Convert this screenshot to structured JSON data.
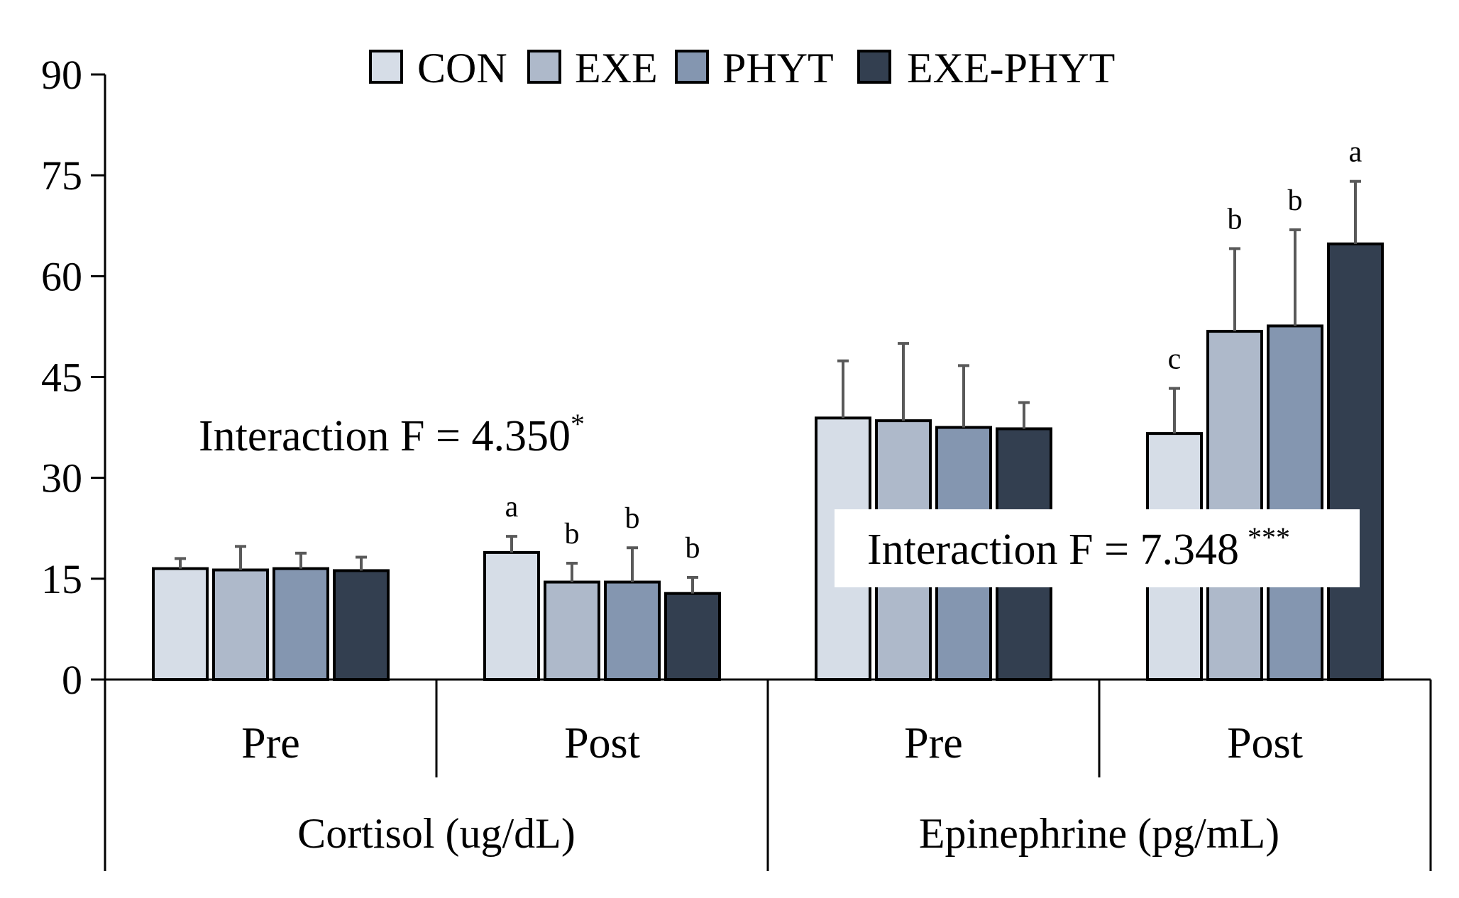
{
  "chart_data": {
    "type": "bar",
    "ylim": [
      0,
      90
    ],
    "yticks": [
      0,
      15,
      30,
      45,
      60,
      75,
      90
    ],
    "legend_position": "top-center",
    "grid": false,
    "series": [
      {
        "name": "CON",
        "color": "#d6dde7"
      },
      {
        "name": "EXE",
        "color": "#aeb9ca"
      },
      {
        "name": "PHYT",
        "color": "#8496b0"
      },
      {
        "name": "EXE-PHYT",
        "color": "#333f50"
      }
    ],
    "groups": [
      {
        "label": "Cortisol (ug/dL)",
        "annotation": {
          "text": "Interaction F = 4.350",
          "sup": "*"
        },
        "subgroups": [
          {
            "label": "Pre",
            "values": [
              16.5,
              16.3,
              16.5,
              16.2
            ],
            "errors": [
              1.5,
              3.5,
              2.3,
              2.0
            ],
            "sig": [
              "",
              "",
              "",
              ""
            ]
          },
          {
            "label": "Post",
            "values": [
              18.9,
              14.5,
              14.5,
              12.8
            ],
            "errors": [
              2.4,
              2.8,
              5.1,
              2.4
            ],
            "sig": [
              "a",
              "b",
              "b",
              "b"
            ]
          }
        ]
      },
      {
        "label": "Epinephrine (pg/mL)",
        "annotation": {
          "text": "Interaction F = 7.348",
          "sup": "***"
        },
        "subgroups": [
          {
            "label": "Pre",
            "values": [
              38.9,
              38.5,
              37.5,
              37.3
            ],
            "errors": [
              8.5,
              11.5,
              9.2,
              3.9
            ],
            "sig": [
              "",
              "",
              "",
              ""
            ]
          },
          {
            "label": "Post",
            "values": [
              36.6,
              51.8,
              52.6,
              64.8
            ],
            "errors": [
              6.7,
              12.3,
              14.3,
              9.3
            ],
            "sig": [
              "c",
              "b",
              "b",
              "a"
            ]
          }
        ]
      }
    ]
  }
}
